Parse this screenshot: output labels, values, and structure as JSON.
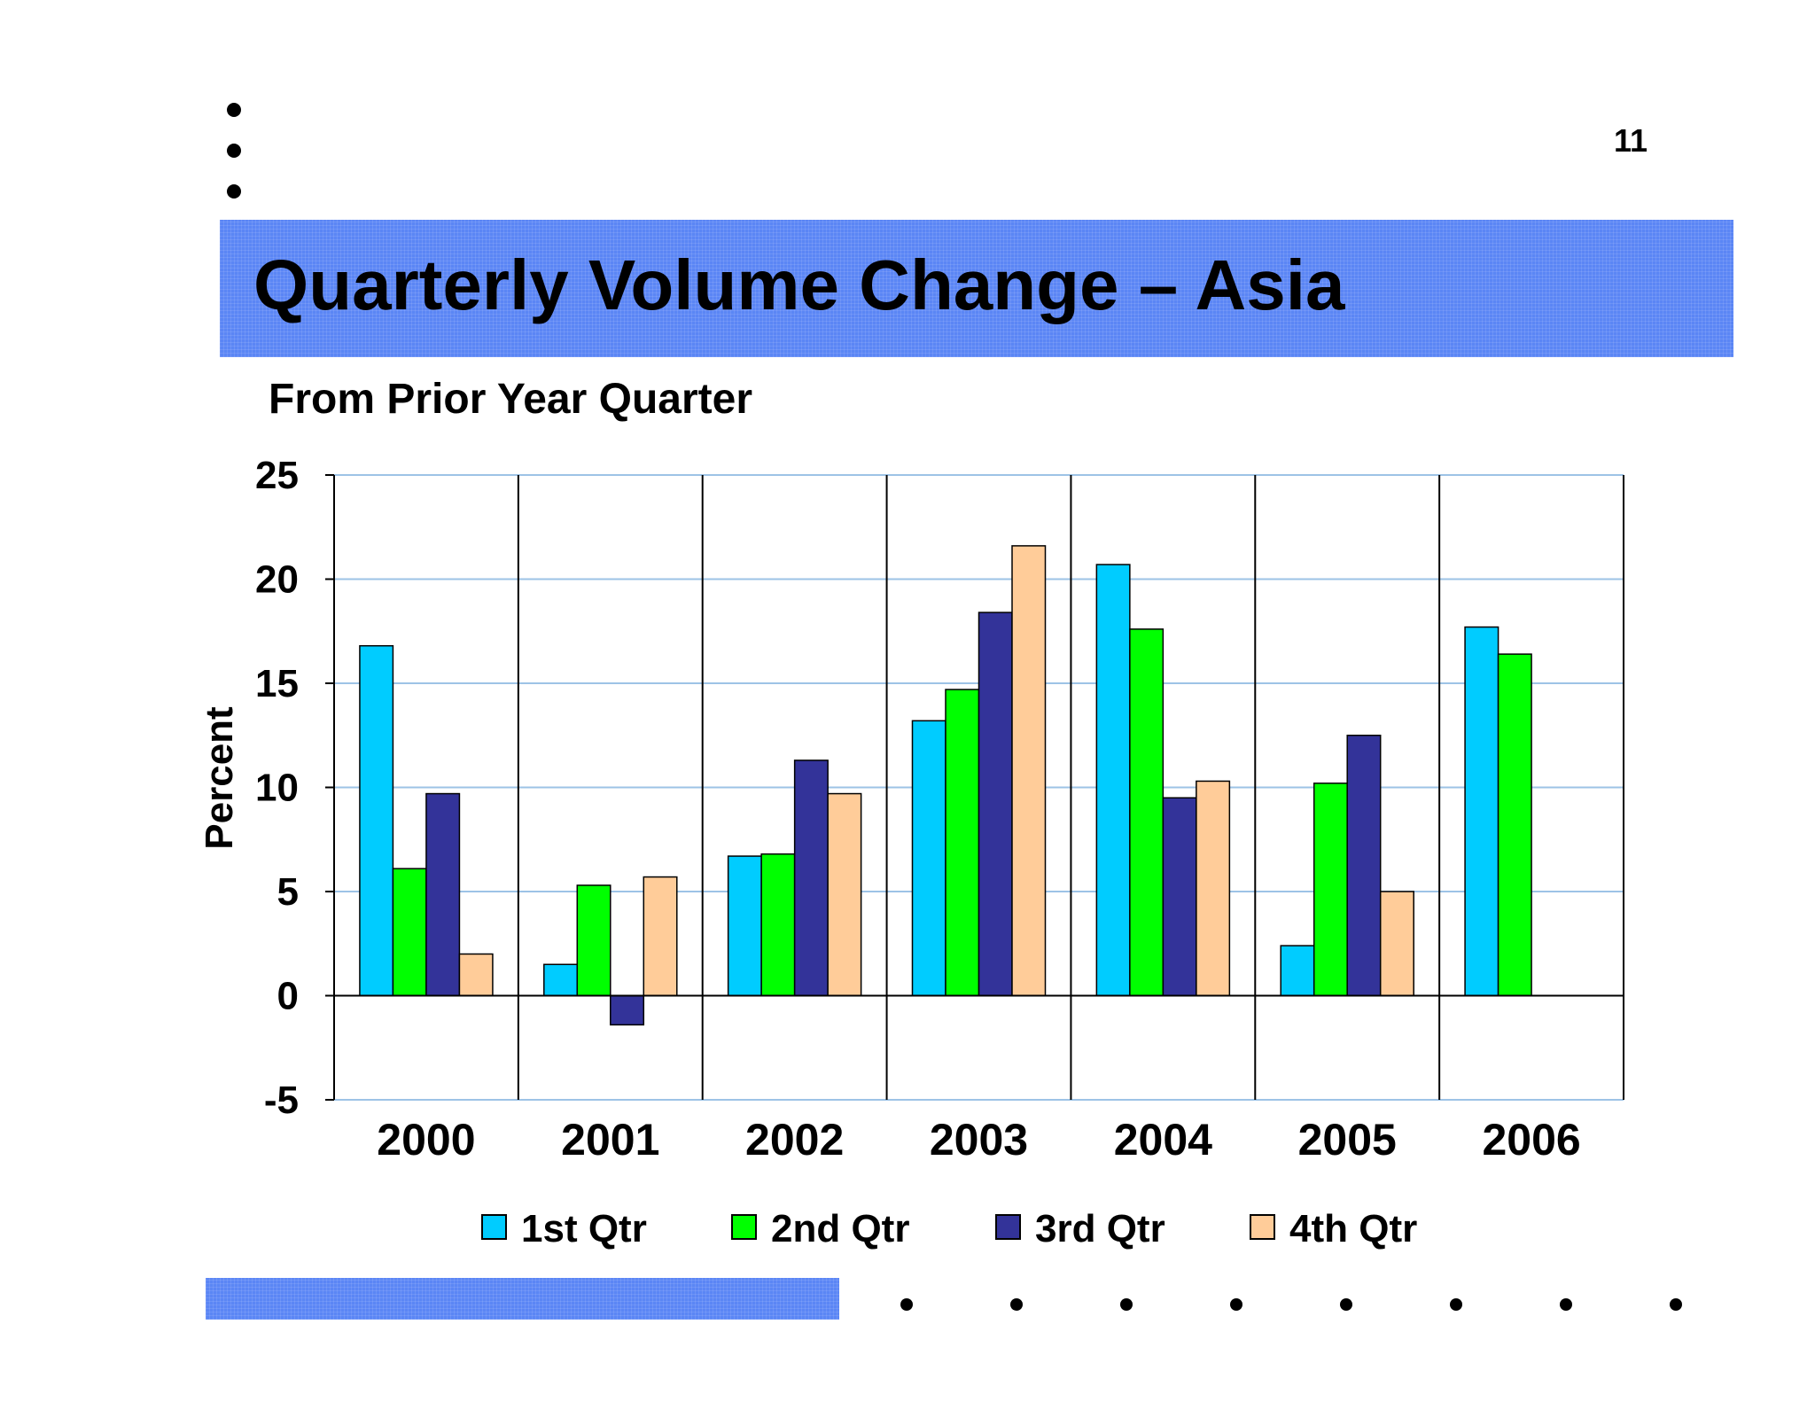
{
  "page": {
    "number": "11",
    "title": "Quarterly Volume Change – Asia",
    "subtitle": "From Prior Year Quarter"
  },
  "colors": {
    "band": "#5b86f5",
    "grid": "#9dc3e6"
  },
  "chart_data": {
    "type": "bar",
    "title": "",
    "xlabel": "",
    "ylabel": "Percent",
    "ylim": [
      -5,
      25
    ],
    "yticks": [
      25,
      20,
      15,
      10,
      5,
      0,
      -5
    ],
    "grid": true,
    "legend_position": "bottom",
    "categories": [
      "2000",
      "2001",
      "2002",
      "2003",
      "2004",
      "2005",
      "2006"
    ],
    "series": [
      {
        "name": "1st Qtr",
        "color": "#00ccff",
        "values": [
          16.8,
          1.5,
          6.7,
          13.2,
          20.7,
          2.4,
          17.7
        ]
      },
      {
        "name": "2nd Qtr",
        "color": "#00ff00",
        "values": [
          6.1,
          5.3,
          6.8,
          14.7,
          17.6,
          10.2,
          16.4
        ]
      },
      {
        "name": "3rd Qtr",
        "color": "#333399",
        "values": [
          9.7,
          -1.4,
          11.3,
          18.4,
          9.5,
          12.5,
          null
        ]
      },
      {
        "name": "4th Qtr",
        "color": "#ffcc99",
        "values": [
          2.0,
          5.7,
          9.7,
          21.6,
          10.3,
          5.0,
          null
        ]
      }
    ]
  }
}
